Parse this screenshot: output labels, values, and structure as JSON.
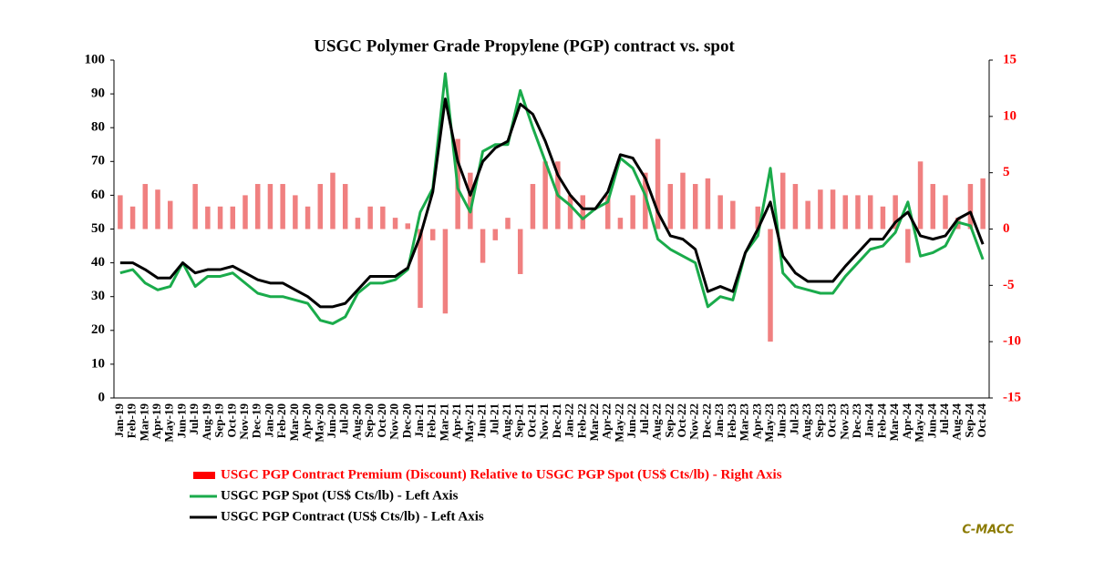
{
  "chart_data": {
    "type": "combo",
    "title": "USGC Polymer Grade Propylene (PGP) contract vs. spot",
    "source": "C-MACC",
    "categories": [
      "Jan-19",
      "Feb-19",
      "Mar-19",
      "Apr-19",
      "May-19",
      "Jun-19",
      "Jul-19",
      "Aug-19",
      "Sep-19",
      "Oct-19",
      "Nov-19",
      "Dec-19",
      "Jan-20",
      "Feb-20",
      "Mar-20",
      "Apr-20",
      "May-20",
      "Jun-20",
      "Jul-20",
      "Aug-20",
      "Sep-20",
      "Oct-20",
      "Nov-20",
      "Dec-20",
      "Jan-21",
      "Feb-21",
      "Mar-21",
      "Apr-21",
      "May-21",
      "Jun-21",
      "Jul-21",
      "Aug-21",
      "Sep-21",
      "Oct-21",
      "Nov-21",
      "Dec-21",
      "Jan-22",
      "Feb-22",
      "Mar-22",
      "Apr-22",
      "May-22",
      "Jun-22",
      "Jul-22",
      "Aug-22",
      "Sep-22",
      "Oct-22",
      "Nov-22",
      "Dec-22",
      "Jan-23",
      "Feb-23",
      "Mar-23",
      "Apr-23",
      "May-23",
      "Jun-23",
      "Jul-23",
      "Aug-23",
      "Sep-23",
      "Oct-23",
      "Nov-23",
      "Dec-23",
      "Jan-24",
      "Feb-24",
      "Mar-24",
      "Apr-24",
      "May-24",
      "Jun-24",
      "Jul-24",
      "Aug-24",
      "Sep-24",
      "Oct-24"
    ],
    "series": [
      {
        "name": "USGC PGP Contract Premium (Discount) Relative to USGC PGP Spot (US$ Cts/lb) - Right Axis",
        "type": "bar",
        "axis": "y2",
        "color": "#f08080",
        "values": [
          3,
          2,
          4,
          3.5,
          2.5,
          0,
          4,
          2,
          2,
          2,
          3,
          4,
          4,
          4,
          3,
          2,
          4,
          5,
          4,
          1,
          2,
          2,
          1,
          0.5,
          -7,
          -1,
          -7.5,
          8,
          5,
          -3,
          -1,
          1,
          -4,
          4,
          6,
          6,
          3,
          3,
          0,
          3,
          1,
          3,
          5,
          8,
          4,
          5,
          4,
          4.5,
          3,
          2.5,
          0,
          2,
          -10,
          5,
          4,
          2.5,
          3.5,
          3.5,
          3,
          3,
          3,
          2,
          3,
          -3,
          6,
          4,
          3,
          1,
          4,
          4.5
        ]
      },
      {
        "name": "USGC PGP Spot (US$ Cts/lb) - Left Axis",
        "type": "line",
        "color": "#1aab4b",
        "values": [
          37,
          38,
          34,
          32,
          33,
          40,
          33,
          36,
          36,
          37,
          34,
          31,
          30,
          30,
          29,
          28,
          23,
          22,
          24,
          31,
          34,
          34,
          35,
          38,
          55,
          62,
          96,
          62,
          55,
          73,
          75,
          75,
          91,
          80,
          70,
          60,
          57,
          53,
          56,
          58,
          71,
          68,
          60,
          47,
          44,
          42,
          40,
          27,
          30,
          29,
          43,
          48,
          68,
          37,
          33,
          32,
          31,
          31,
          36,
          40,
          44,
          45,
          49,
          58,
          42,
          43,
          45,
          52,
          51,
          41
        ]
      },
      {
        "name": "USGC PGP Contract (US$ Cts/lb) - Left Axis",
        "type": "line",
        "color": "#000000",
        "values": [
          40,
          40,
          38,
          35.5,
          35.5,
          40,
          37,
          38,
          38,
          39,
          37,
          35,
          34,
          34,
          32,
          30,
          27,
          27,
          28,
          32,
          36,
          36,
          36,
          38.5,
          48,
          61,
          88.5,
          70,
          60,
          70,
          74,
          76,
          87,
          84,
          76,
          66,
          60,
          56,
          56,
          61,
          72,
          71,
          65,
          55,
          48,
          47,
          44,
          31.5,
          33,
          31.5,
          43,
          50,
          58,
          42,
          37,
          34.5,
          34.5,
          34.5,
          39,
          43,
          47,
          47,
          52,
          55,
          48,
          47,
          48,
          53,
          55,
          45.5
        ]
      }
    ],
    "ylim": [
      0,
      100
    ],
    "yticks": [
      0,
      10,
      20,
      30,
      40,
      50,
      60,
      70,
      80,
      90,
      100
    ],
    "y2lim": [
      -15,
      15
    ],
    "y2ticks": [
      -15,
      -10,
      -5,
      0,
      5,
      10,
      15
    ],
    "y2color": "#ff0000"
  }
}
